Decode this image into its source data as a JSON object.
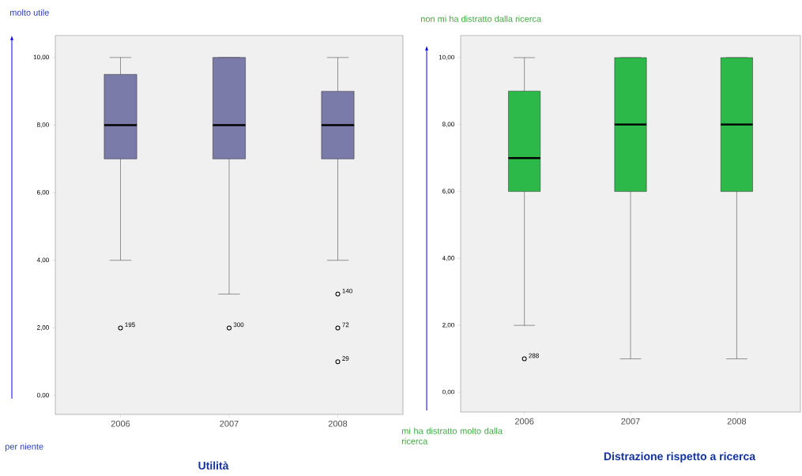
{
  "chart_data": [
    {
      "type": "box",
      "title": "Utilità",
      "categories": [
        "2006",
        "2007",
        "2008"
      ],
      "color": "#7b7baa",
      "boxes": [
        {
          "low": 4,
          "q1": 7,
          "median": 8,
          "q3": 9.5,
          "high": 10,
          "outliers": [
            2
          ]
        },
        {
          "low": 3,
          "q1": 7,
          "median": 8,
          "q3": 10,
          "high": 10,
          "outliers": [
            2
          ]
        },
        {
          "low": 4,
          "q1": 7,
          "median": 8,
          "q3": 9,
          "high": 10,
          "outliers": [
            3,
            2,
            1
          ]
        }
      ],
      "ylim": [
        -0.56,
        10.65
      ],
      "yticks": [
        {
          "value": 0,
          "label": "0,00"
        },
        {
          "value": 2,
          "label": "2,00"
        },
        {
          "value": 4,
          "label": "4,00"
        },
        {
          "value": 6,
          "label": "6,00"
        },
        {
          "value": 8,
          "label": "8,00"
        },
        {
          "value": 10,
          "label": "10,00"
        }
      ],
      "annotations": [
        "molto utile",
        "per niente",
        "195",
        "300",
        "140",
        "72",
        "29"
      ]
    },
    {
      "type": "box",
      "title": "Distrazione rispetto a ricerca",
      "categories": [
        "2006",
        "2007",
        "2008"
      ],
      "color": "#2db84a",
      "boxes": [
        {
          "low": 2,
          "q1": 6,
          "median": 7,
          "q3": 9,
          "high": 10,
          "outliers": [
            1
          ]
        },
        {
          "low": 1,
          "q1": 6,
          "median": 8,
          "q3": 10,
          "high": 10
        },
        {
          "low": 1,
          "q1": 6,
          "median": 8,
          "q3": 10,
          "high": 10
        }
      ],
      "ylim": [
        -0.59,
        10.66
      ],
      "yticks": [
        {
          "value": 0,
          "label": "0,00"
        },
        {
          "value": 2,
          "label": "2,00"
        },
        {
          "value": 4,
          "label": "4,00"
        },
        {
          "value": 6,
          "label": "6,00"
        },
        {
          "value": 8,
          "label": "8,00"
        },
        {
          "value": 10,
          "label": "10,00"
        }
      ],
      "annotations": [
        "non mi ha distratto dalla ricerca",
        "mi ha distratto molto dalla ricerca",
        "288"
      ]
    }
  ]
}
